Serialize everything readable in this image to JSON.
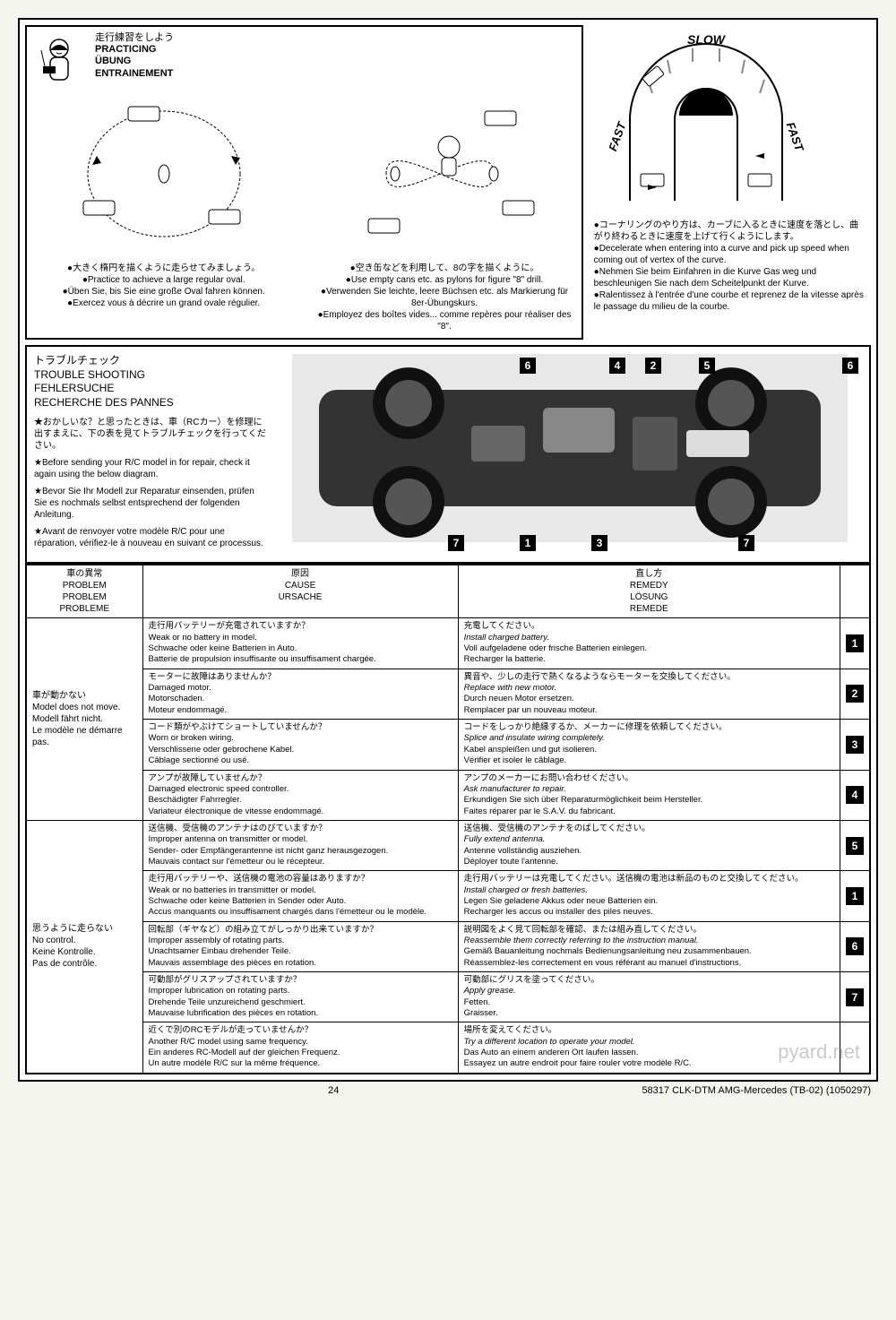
{
  "practice": {
    "jp_title": "走行練習をしよう",
    "en_title": "PRACTICING",
    "de_title": "ÜBUNG",
    "fr_title": "ENTRAINEMENT",
    "oval": {
      "jp": "●大きく楕円を描くように走らせてみましょう。",
      "en": "●Practice to achieve a large regular oval.",
      "de": "●Üben Sie, bis Sie eine große Oval fahren können.",
      "fr": "●Exercez vous à décrire un grand ovale régulier."
    },
    "figure8": {
      "jp": "●空き缶などを利用して、8の字を描くように。",
      "en": "●Use empty cans etc. as pylons for figure \"8\" drill.",
      "de": "●Verwenden Sie leichte, leere Büchsen etc. als Markierung für 8er-Übungskurs.",
      "fr": "●Employez des boîtes vides... comme repères pour réaliser des \"8\"."
    }
  },
  "curve": {
    "slow": "SLOW",
    "fast_left": "FAST",
    "fast_right": "FAST",
    "jp": "●コーナリングのやり方は、カーブに入るときに速度を落とし、曲がり終わるときに速度を上げて行くようにします。",
    "en": "●Decelerate when entering into a curve and pick up speed when coming out of vertex of the curve.",
    "de": "●Nehmen Sie beim Einfahren in die Kurve Gas weg und beschleunigen Sie nach dem Scheitelpunkt der Kurve.",
    "fr": "●Ralentissez à l'entrée d'une courbe et reprenez de la vitesse après le passage du milieu de la courbe."
  },
  "trouble": {
    "jp_title": "トラブルチェック",
    "en_title": "TROUBLE SHOOTING",
    "de_title": "FEHLERSUCHE",
    "fr_title": "RECHERCHE DES PANNES",
    "jp_note": "★おかしいな？と思ったときは、車（RCカー）を修理に出すまえに、下の表を見てトラブルチェックを行ってください。",
    "en_note": "★Before sending your R/C model in for repair, check it again using the below diagram.",
    "de_note": "★Bevor Sie Ihr Modell zur Reparatur einsenden, prüfen Sie es nochmals selbst entsprechend der folgenden Anleitung.",
    "fr_note": "★Avant de renvoyer votre modèle R/C pour une réparation, vérifiez-le à nouveau en suivant ce processus."
  },
  "table": {
    "headers": {
      "problem": {
        "jp": "車の異常",
        "en": "PROBLEM",
        "de": "PROBLEM",
        "fr": "PROBLEME"
      },
      "cause": {
        "jp": "原因",
        "en": "CAUSE",
        "de": "URSACHE",
        "fr": ""
      },
      "remedy": {
        "jp": "直し方",
        "en": "REMEDY",
        "de": "LÖSUNG",
        "fr": "REMEDE"
      }
    },
    "problems": [
      {
        "label": {
          "jp": "車が動かない",
          "en": "Model does not move.",
          "de": "Modell fährt nicht.",
          "fr": "Le modèle ne démarre pas."
        },
        "rows": [
          {
            "cause_jp": "走行用バッテリーが充電されていますか？",
            "cause_en": "Weak or no battery in model.",
            "cause_de": "Schwache oder keine Batterien in Auto.",
            "cause_fr": "Batterie de propulsion insuffisante ou insuffisament chargée.",
            "remedy_jp": "充電してください。",
            "remedy_en": "Install charged battery.",
            "remedy_de": "Voll aufgeladene oder frische Batterien einlegen.",
            "remedy_fr": "Recharger la batterie.",
            "num": "1"
          },
          {
            "cause_jp": "モーターに故障はありませんか？",
            "cause_en": "Damaged motor.",
            "cause_de": "Motorschaden.",
            "cause_fr": "Moteur endommagé.",
            "remedy_jp": "異音や、少しの走行で熱くなるようならモーターを交換してください。",
            "remedy_en": "Replace with new motor.",
            "remedy_de": "Durch neuen Motor ersetzen.",
            "remedy_fr": "Remplacer par un nouveau moteur.",
            "num": "2"
          },
          {
            "cause_jp": "コード類がやぶけてショートしていませんか？",
            "cause_en": "Worn or broken wiring.",
            "cause_de": "Verschlissene oder gebrochene Kabel.",
            "cause_fr": "Câblage sectionné ou usé.",
            "remedy_jp": "コードをしっかり絶縁するか、メーカーに修理を依頼してください。",
            "remedy_en": "Splice and insulate wiring completely.",
            "remedy_de": "Kabel anspleißen und gut isolieren.",
            "remedy_fr": "Vérifier et isoler le câblage.",
            "num": "3"
          },
          {
            "cause_jp": "アンプが故障していませんか？",
            "cause_en": "Damaged electronic speed controller.",
            "cause_de": "Beschädigter Fahrregler.",
            "cause_fr": "Variateur électronique de vitesse endommagé.",
            "remedy_jp": "アンプのメーカーにお問い合わせください。",
            "remedy_en": "Ask manufacturer to repair.",
            "remedy_de": "Erkundigen Sie sich über Reparaturmöglichkeit beim Hersteller.",
            "remedy_fr": "Faites réparer par le S.A.V. du fabricant.",
            "num": "4"
          }
        ]
      },
      {
        "label": {
          "jp": "思うように走らない",
          "en": "No control.",
          "de": "Keine Kontrolle.",
          "fr": "Pas de contrôle."
        },
        "rows": [
          {
            "cause_jp": "送信機、受信機のアンテナはのびていますか？",
            "cause_en": "Improper antenna on transmitter or model.",
            "cause_de": "Sender- oder Empfängerantenne ist nicht ganz herausgezogen.",
            "cause_fr": "Mauvais contact sur l'émetteur ou le récepteur.",
            "remedy_jp": "送信機、受信機のアンテナをのばしてください。",
            "remedy_en": "Fully extend antenna.",
            "remedy_de": "Antenne vollständig ausziehen.",
            "remedy_fr": "Déployer toute l'antenne.",
            "num": "5"
          },
          {
            "cause_jp": "走行用バッテリーや、送信機の電池の容量はありますか？",
            "cause_en": "Weak or no batteries in transmitter or model.",
            "cause_de": "Schwache oder keine Batterien in Sender oder Auto.",
            "cause_fr": "Accus manquants ou insuffisament chargés dans l'émetteur ou le modèle.",
            "remedy_jp": "走行用バッテリーは充電してください。送信機の電池は新品のものと交換してください。",
            "remedy_en": "Install charged or fresh batteries.",
            "remedy_de": "Legen Sie geladene Akkus oder neue Batterien ein.",
            "remedy_fr": "Recharger les accus ou installer des piles neuves.",
            "num": "1"
          },
          {
            "cause_jp": "回転部（ギヤなど）の組み立てがしっかり出来ていますか？",
            "cause_en": "Improper assembly of rotating parts.",
            "cause_de": "Unachtsamer Einbau drehender Teile.",
            "cause_fr": "Mauvais assemblage des pièces en rotation.",
            "remedy_jp": "説明図をよく見て回転部を確認、または組み直してください。",
            "remedy_en": "Reassemble them correctly referring to the instruction manual.",
            "remedy_de": "Gemäß Bauanleitung nochmals Bedienungsanleitung neu zusammenbauen.",
            "remedy_fr": "Réassemblez-les correctement en vous référant au manuel d'instructions.",
            "num": "6"
          },
          {
            "cause_jp": "可動部がグリスアップされていますか？",
            "cause_en": "Improper lubrication on rotating parts.",
            "cause_de": "Drehende Teile unzureichend geschmiert.",
            "cause_fr": "Mauvaise lubrification des pièces en rotation.",
            "remedy_jp": "可動部にグリスを塗ってください。",
            "remedy_en": "Apply grease.",
            "remedy_de": "Fetten.",
            "remedy_fr": "Graisser.",
            "num": "7"
          },
          {
            "cause_jp": "近くで別のRCモデルが走っていませんか？",
            "cause_en": "Another R/C model using same frequency.",
            "cause_de": "Ein anderes RC-Modell auf der gleichen Frequenz.",
            "cause_fr": "Un autre modèle R/C sur la même fréquence.",
            "remedy_jp": "場所を変えてください。",
            "remedy_en": "Try a different location to operate your model.",
            "remedy_de": "Das Auto an einem anderen Ort laufen lassen.",
            "remedy_fr": "Essayez un autre endroit pour faire rouler votre modèle R/C.",
            "num": ""
          }
        ]
      }
    ]
  },
  "footer": {
    "page": "24",
    "ref": "58317 CLK-DTM AMG-Mercedes (TB-02) (1050297)"
  },
  "watermark": "pyard.net"
}
